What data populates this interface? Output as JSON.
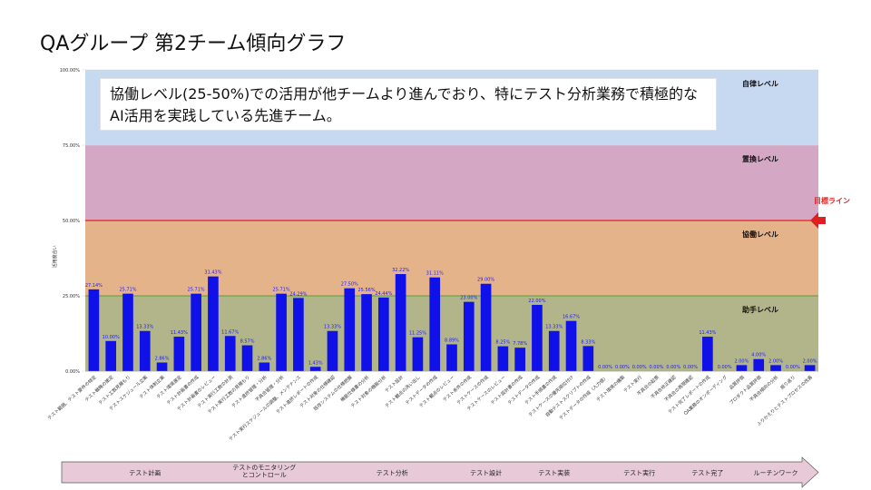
{
  "title": "QAグループ 第2チーム傾向グラフ",
  "callout": "協働レベル(25-50%)での活用が他チームより進んでおり、特にテスト分析業務で積極的なAI活用を実践している先進チーム。",
  "target_label": "目標ライン",
  "colors": {
    "bar": "#1010e8",
    "band_autonomous": "#c6d9f1",
    "band_replacement": "#d4a8c4",
    "band_collaboration": "#e5b38a",
    "band_assist": "#b2b58a",
    "target_line": "#e02020",
    "assist_line": "#5aa02c",
    "arrow": "#e02020",
    "phase_fill": "#e8c9d8"
  },
  "chart_data": {
    "type": "bar",
    "ylabel": "活用度合い",
    "ylim": [
      0,
      100
    ],
    "yticks": [
      "0.00%",
      "25.00%",
      "50.00%",
      "75.00%",
      "100.00%"
    ],
    "levels": [
      {
        "name": "自律レベル",
        "from": 75,
        "to": 100
      },
      {
        "name": "置換レベル",
        "from": 50,
        "to": 75
      },
      {
        "name": "協働レベル",
        "from": 25,
        "to": 50
      },
      {
        "name": "助手レベル",
        "from": 0,
        "to": 25
      }
    ],
    "target": 50,
    "categories": [
      "テスト範囲、テスト要件の特定",
      "テスト戦略の策定",
      "テスト工数見積もり",
      "テストスケジュール立案",
      "テスト体制立案",
      "テスト環境選定",
      "テスト計画書の作成",
      "テスト計画書のレビュー",
      "テスト実行工数の計測",
      "テスト実行工数の見積もり",
      "テスト進捗管理・分析",
      "不具合管理・分析",
      "テスト実行スケジュールの調整、メンテナンス",
      "テスト進捗レポートの作成",
      "テスト対象の仕様確認",
      "既存システムの仕様把握",
      "機能仕様書の分析",
      "テスト対象の機能分析",
      "テスト設計",
      "テスト観点の洗い出し",
      "テストデータの作成",
      "テスト観点のレビュー",
      "テスト条件の作成",
      "テストケースの作成",
      "テストケースのレビュー",
      "テスト設計書の作成",
      "テストデータの作成",
      "テスト手順書の作成",
      "テストケースの優先順位付け",
      "自動テストスクリプトの作成",
      "テストデータの作成（入力値）",
      "テスト環境の構築",
      "テスト実行",
      "不具合の起票",
      "不具合修正確認",
      "不具合の再現確認",
      "テスト完了レポートの作成",
      "QA業務のオンボーディング",
      "品質評価",
      "プロダクト品質評価",
      "不具合傾向の分析",
      "振り返り",
      "ふりかえりとテストプロセスの改善"
    ],
    "values": [
      27.14,
      10.0,
      25.71,
      13.33,
      2.86,
      11.43,
      25.71,
      31.43,
      11.67,
      8.57,
      2.86,
      25.71,
      24.29,
      1.43,
      13.33,
      27.5,
      25.56,
      24.44,
      32.22,
      11.25,
      31.11,
      8.89,
      23.0,
      29.0,
      8.25,
      7.78,
      22.0,
      13.33,
      16.67,
      8.33,
      0.0,
      0.0,
      0.0,
      0.0,
      0.0,
      0.0,
      11.43,
      0.0,
      2.0,
      4.0,
      2.0,
      0.0,
      2.0
    ],
    "data_labels": [
      "27.14%",
      "10.00%",
      "25.71%",
      "13.33%",
      "2.86%",
      "11.43%",
      "25.71%",
      "31.43%",
      "11.67%",
      "8.57%",
      "2.86%",
      "25.71%",
      "24.29%",
      "1.43%",
      "13.33%",
      "27.50%",
      "25.56%",
      "24.44%",
      "32.22%",
      "11.25%",
      "31.11%",
      "8.89%",
      "23.00%",
      "29.00%",
      "8.25%",
      "7.78%",
      "22.00%",
      "13.33%",
      "16.67%",
      "8.33%",
      "0.00%",
      "0.00%",
      "0.00%",
      "0.00%",
      "0.00%",
      "0.00%",
      "11.43%",
      "0.00%",
      "2.00%",
      "4.00%",
      "2.00%",
      "0.00%",
      "2.00%"
    ],
    "phases": [
      {
        "label": "テスト計画",
        "span": 7
      },
      {
        "label": "テストのモニタリング\nとコントロール",
        "span": 7
      },
      {
        "label": "テスト分析",
        "span": 8
      },
      {
        "label": "テスト設計",
        "span": 3
      },
      {
        "label": "テスト実装",
        "span": 5
      },
      {
        "label": "テスト実行",
        "span": 5
      },
      {
        "label": "テスト完了",
        "span": 3
      },
      {
        "label": "ルーチンワーク",
        "span": 5
      }
    ]
  }
}
